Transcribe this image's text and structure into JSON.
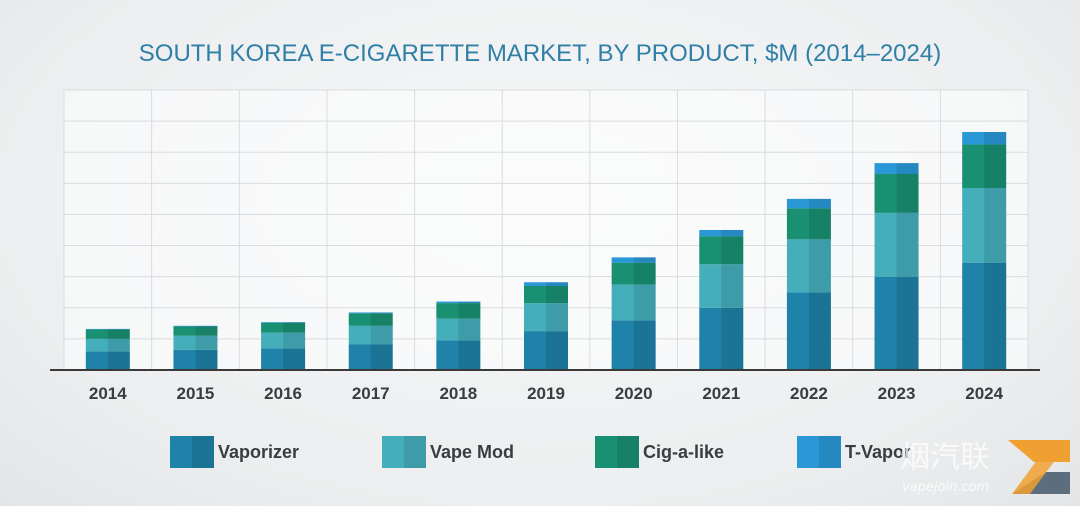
{
  "chart_data": {
    "type": "bar",
    "stacked": true,
    "title": "SOUTH KOREA E-CIGARETTE MARKET, BY PRODUCT, $M (2014–2024)",
    "xlabel": "",
    "ylabel": "",
    "categories": [
      "2014",
      "2015",
      "2016",
      "2017",
      "2018",
      "2019",
      "2020",
      "2021",
      "2022",
      "2023",
      "2024"
    ],
    "ylim": [
      0,
      9
    ],
    "grid": true,
    "legend_position": "bottom",
    "series": [
      {
        "name": "Vaporizer",
        "color": "#1f82a8",
        "values": [
          0.6,
          0.65,
          0.7,
          0.82,
          0.95,
          1.25,
          1.6,
          2.0,
          2.5,
          3.0,
          3.45
        ]
      },
      {
        "name": "Vape Mod",
        "color": "#45aebb",
        "values": [
          0.4,
          0.45,
          0.5,
          0.6,
          0.7,
          0.9,
          1.15,
          1.4,
          1.7,
          2.05,
          2.4
        ]
      },
      {
        "name": "Cig-a-like",
        "color": "#1a9073",
        "values": [
          0.3,
          0.3,
          0.32,
          0.4,
          0.5,
          0.55,
          0.7,
          0.9,
          1.0,
          1.25,
          1.4
        ]
      },
      {
        "name": "T-Vapor",
        "color": "#2a98d6",
        "values": [
          0.02,
          0.02,
          0.02,
          0.03,
          0.05,
          0.12,
          0.17,
          0.2,
          0.3,
          0.35,
          0.4
        ]
      }
    ]
  },
  "watermark": {
    "chinese": "烟汽联",
    "site": "vapejoin.com"
  }
}
